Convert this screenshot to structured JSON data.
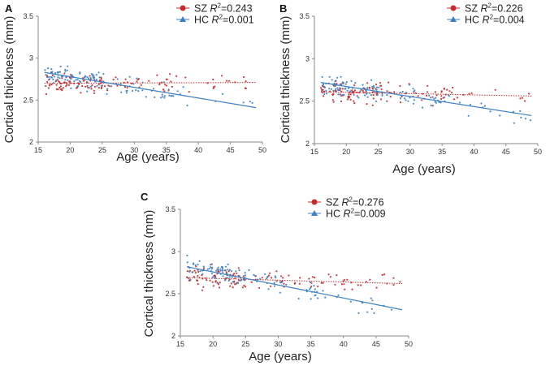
{
  "colors": {
    "sz": "#c8282a",
    "hc": "#3b7fc4",
    "axis": "#8a8a8a"
  },
  "chart_data": [
    {
      "panel": "A",
      "type": "scatter",
      "xlabel": "Age (years)",
      "ylabel": "Cortical  thickness (mm)",
      "xlim": [
        15,
        50
      ],
      "ylim": [
        2,
        3.5
      ],
      "xticks": [
        15,
        20,
        25,
        30,
        35,
        40,
        45,
        50
      ],
      "yticks": [
        2,
        2.5,
        3,
        3.5
      ],
      "series": [
        {
          "name": "SZ",
          "r2_label": "=0.243",
          "marker": "circle",
          "trend": {
            "line_style": "dotted",
            "y_at_16": 2.7,
            "y_at_49": 2.71
          }
        },
        {
          "name": "HC",
          "r2_label": "=0.001",
          "marker": "triangle",
          "trend": {
            "line_style": "solid",
            "y_at_16": 2.83,
            "y_at_49": 2.41
          }
        }
      ],
      "legend": {
        "r_symbol": "R",
        "sup": "2",
        "position": "top-right"
      }
    },
    {
      "panel": "B",
      "type": "scatter",
      "xlabel": "Age (years)",
      "ylabel": "Cortical  thickness (mm)",
      "xlim": [
        15,
        50
      ],
      "ylim": [
        2,
        3.5
      ],
      "xticks": [
        15,
        20,
        25,
        30,
        35,
        40,
        45,
        50
      ],
      "yticks": [
        2,
        2.5,
        3,
        3.5
      ],
      "series": [
        {
          "name": "SZ",
          "r2_label": "=0.226",
          "marker": "circle",
          "trend": {
            "line_style": "dotted",
            "y_at_16": 2.61,
            "y_at_49": 2.56
          }
        },
        {
          "name": "HC",
          "r2_label": "=0.004",
          "marker": "triangle",
          "trend": {
            "line_style": "solid",
            "y_at_16": 2.72,
            "y_at_49": 2.33
          }
        }
      ],
      "legend": {
        "r_symbol": "R",
        "sup": "2",
        "position": "top-right"
      }
    },
    {
      "panel": "C",
      "type": "scatter",
      "xlabel": "Age (years)",
      "ylabel": "Cortical  thickness (mm)",
      "xlim": [
        15,
        50
      ],
      "ylim": [
        2,
        3.5
      ],
      "xticks": [
        15,
        20,
        25,
        30,
        35,
        40,
        45,
        50
      ],
      "yticks": [
        2,
        2.5,
        3,
        3.5
      ],
      "series": [
        {
          "name": "SZ",
          "r2_label": "=0.276",
          "marker": "circle",
          "trend": {
            "line_style": "dotted",
            "y_at_16": 2.69,
            "y_at_49": 2.62
          }
        },
        {
          "name": "HC",
          "r2_label": "=0.009",
          "marker": "triangle",
          "trend": {
            "line_style": "solid",
            "y_at_16": 2.82,
            "y_at_49": 2.31
          }
        }
      ],
      "legend": {
        "r_symbol": "R",
        "sup": "2",
        "position": "top-right"
      }
    }
  ]
}
